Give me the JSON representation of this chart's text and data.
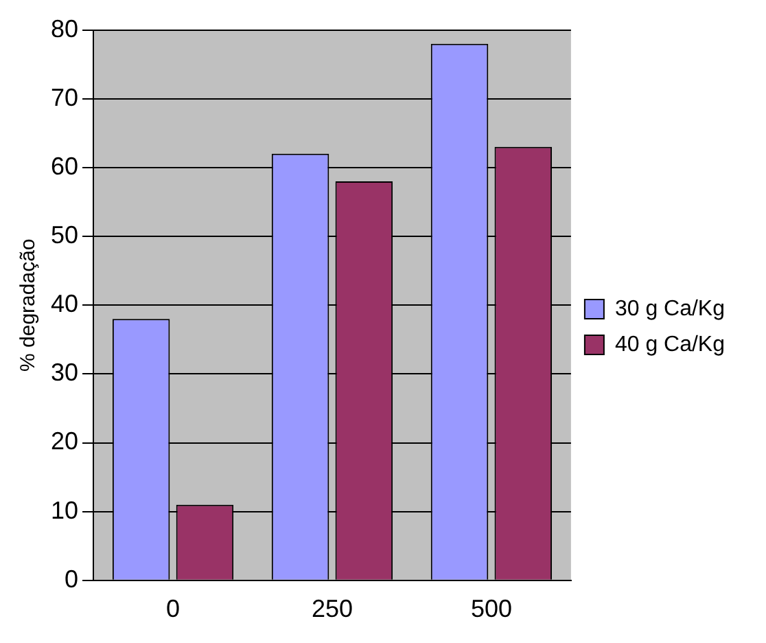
{
  "chart_data": {
    "type": "bar",
    "ylabel": "% degradação",
    "categories": [
      "0",
      "250",
      "500"
    ],
    "series": [
      {
        "name": "30 g Ca/Kg",
        "color": "#9999ff",
        "values": [
          38,
          62,
          78
        ]
      },
      {
        "name": "40 g Ca/Kg",
        "color": "#993366",
        "values": [
          11,
          58,
          63
        ]
      }
    ],
    "ylim": [
      0,
      80
    ],
    "yticks": [
      0,
      10,
      20,
      30,
      40,
      50,
      60,
      70,
      80
    ],
    "grid": "y",
    "legend": "right"
  }
}
